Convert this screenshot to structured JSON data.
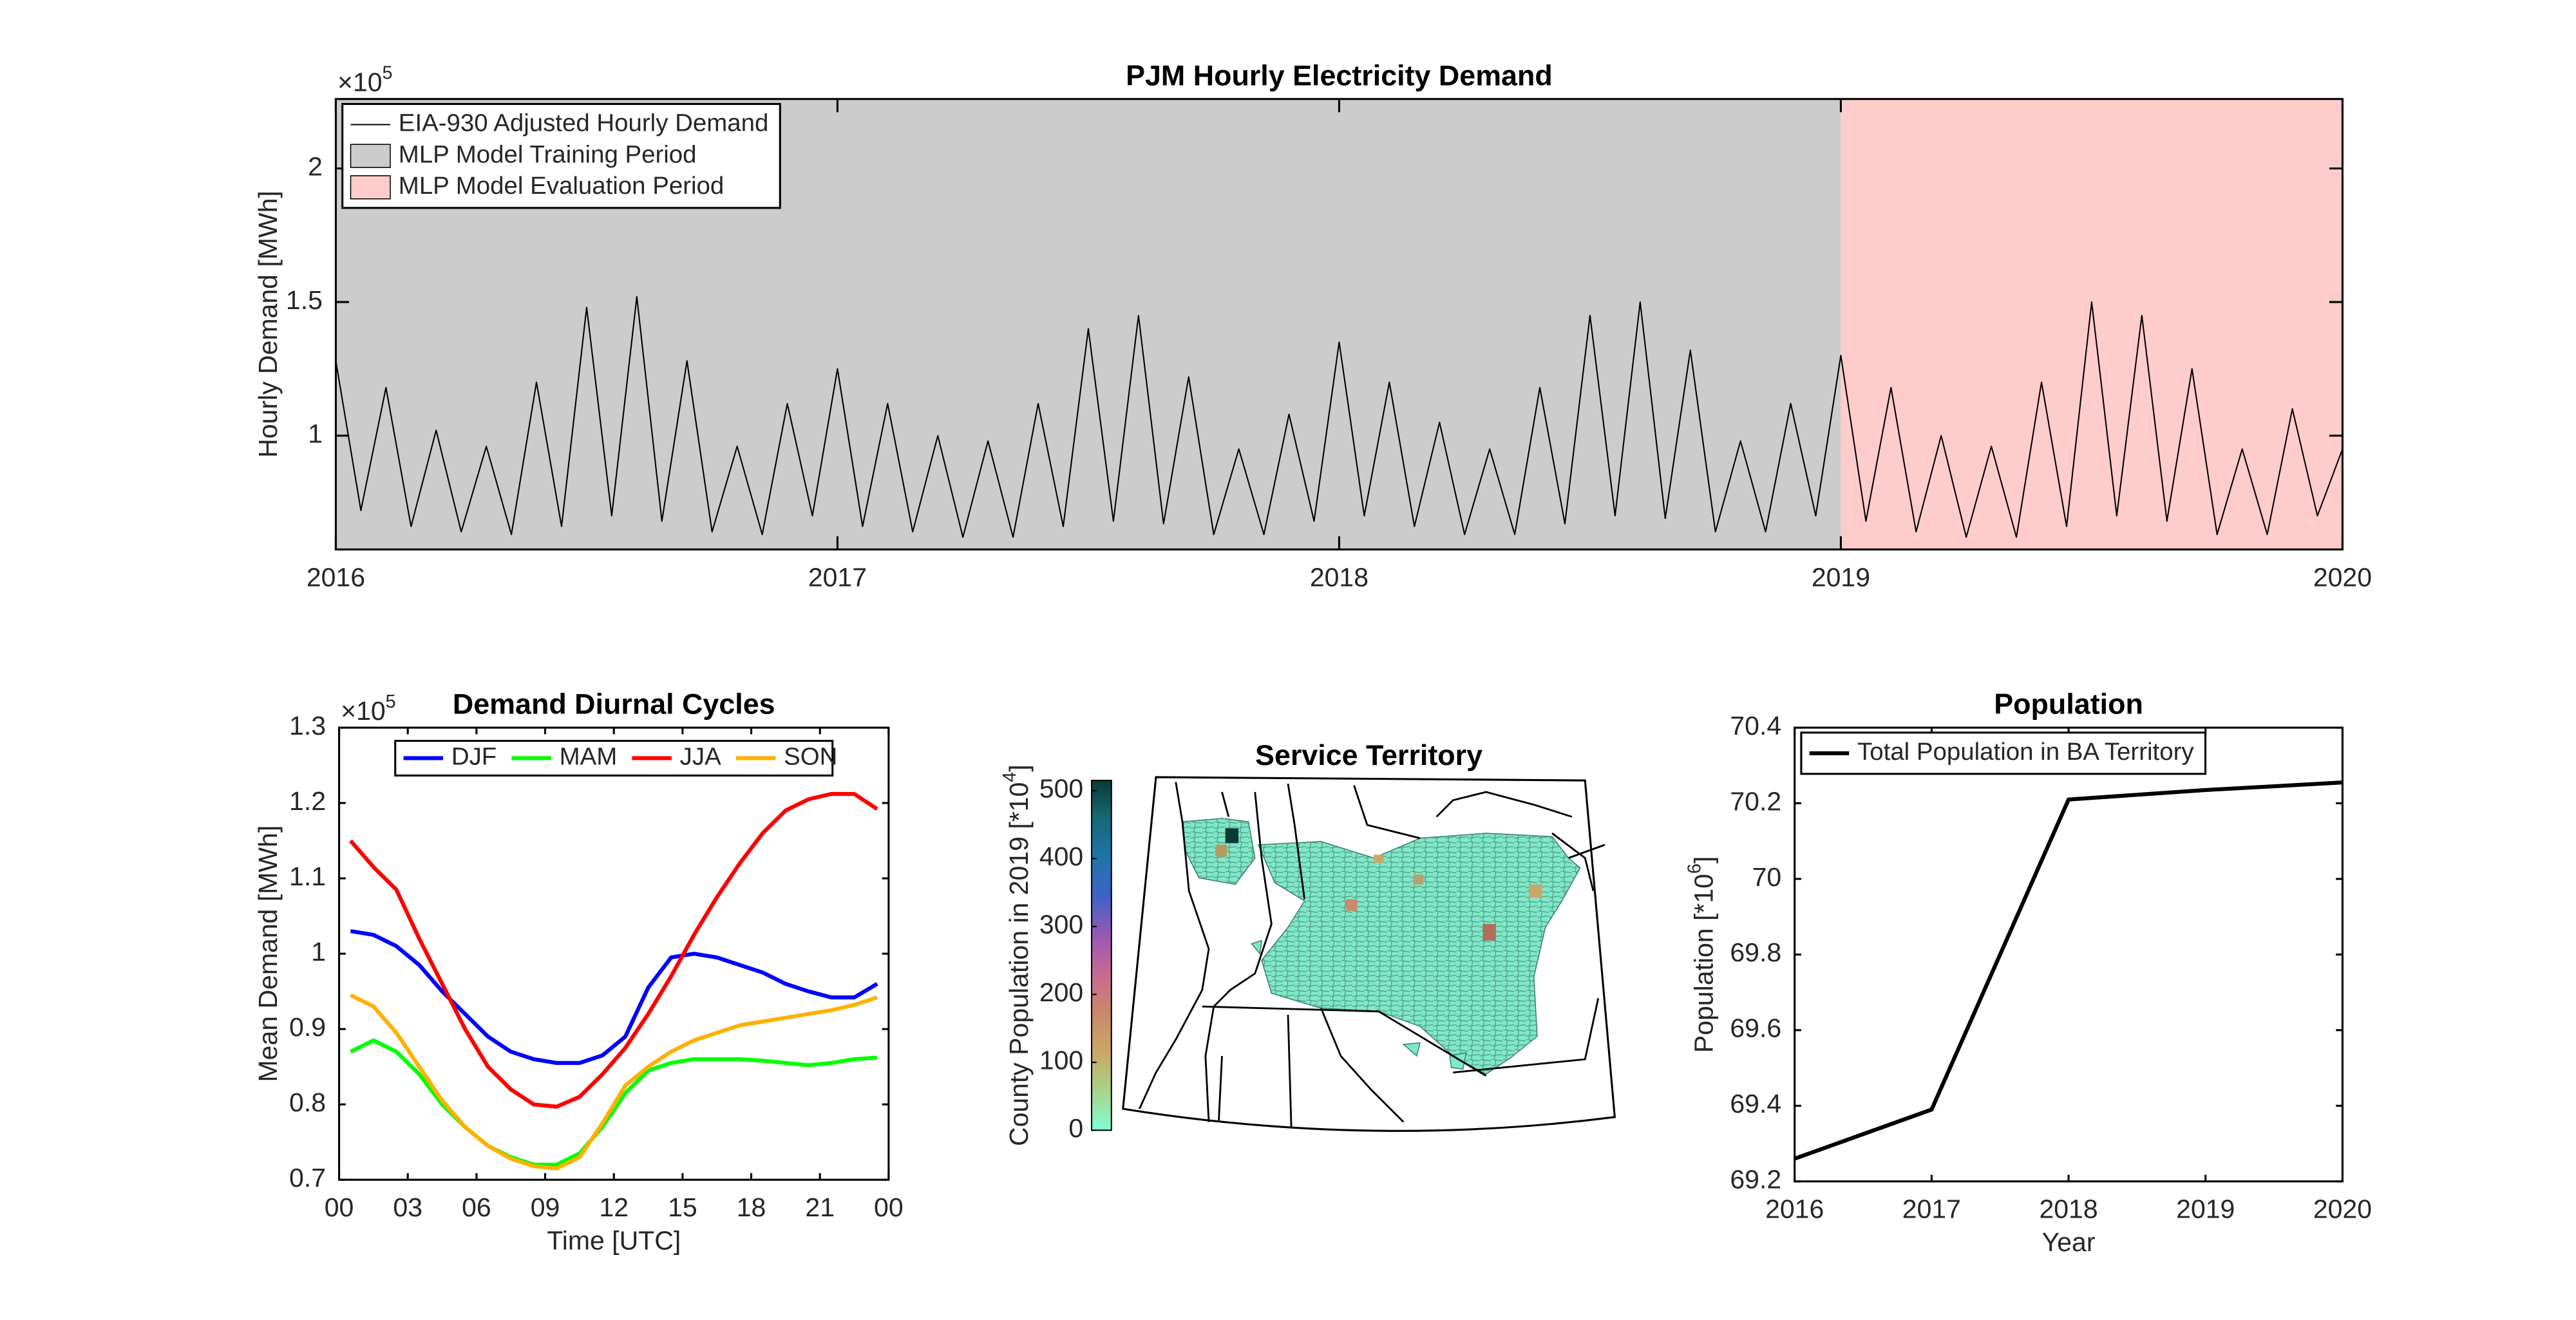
{
  "chart_data": [
    {
      "type": "line",
      "title": "PJM Hourly Electricity Demand",
      "y_label": "Hourly Demand [MWh]",
      "y_multiplier": "×10",
      "y_multiplier_power": "5",
      "x": [
        2016,
        2016.05,
        2016.1,
        2016.15,
        2016.2,
        2016.25,
        2016.3,
        2016.35,
        2016.4,
        2016.45,
        2016.5,
        2016.55,
        2016.6,
        2016.65,
        2016.7,
        2016.75,
        2016.8,
        2016.85,
        2016.9,
        2016.95,
        2017,
        2017.05,
        2017.1,
        2017.15,
        2017.2,
        2017.25,
        2017.3,
        2017.35,
        2017.4,
        2017.45,
        2017.5,
        2017.55,
        2017.6,
        2017.65,
        2017.7,
        2017.75,
        2017.8,
        2017.85,
        2017.9,
        2017.95,
        2018,
        2018.05,
        2018.1,
        2018.15,
        2018.2,
        2018.25,
        2018.3,
        2018.35,
        2018.4,
        2018.45,
        2018.5,
        2018.55,
        2018.6,
        2018.65,
        2018.7,
        2018.75,
        2018.8,
        2018.85,
        2018.9,
        2018.95,
        2019,
        2019.05,
        2019.1,
        2019.15,
        2019.2,
        2019.25,
        2019.3,
        2019.35,
        2019.4,
        2019.45,
        2019.5,
        2019.55,
        2019.6,
        2019.65,
        2019.7,
        2019.75,
        2019.8,
        2019.85,
        2019.9,
        2019.95,
        2020
      ],
      "series": [
        {
          "name": "EIA-930 Adjusted Hourly Demand",
          "color": "#000000",
          "values": [
            128000,
            72000,
            118000,
            66000,
            102000,
            64000,
            96000,
            63000,
            120000,
            66000,
            148000,
            70000,
            152000,
            68000,
            128000,
            64000,
            96000,
            63000,
            112000,
            70000,
            125000,
            66000,
            112000,
            64000,
            100000,
            62000,
            98000,
            62000,
            112000,
            66000,
            140000,
            68000,
            145000,
            67000,
            122000,
            63000,
            95000,
            63000,
            108000,
            68000,
            135000,
            70000,
            120000,
            66000,
            105000,
            63000,
            95000,
            63000,
            118000,
            67000,
            145000,
            70000,
            150000,
            69000,
            132000,
            64000,
            98000,
            64000,
            112000,
            70000,
            130000,
            68000,
            118000,
            64000,
            100000,
            62000,
            96000,
            62000,
            120000,
            66000,
            150000,
            70000,
            145000,
            68000,
            125000,
            63000,
            95000,
            63000,
            110000,
            70000,
            95000
          ]
        }
      ],
      "regions": [
        {
          "name": "MLP Model Training Period",
          "color": "#cccccc",
          "from": 2016,
          "to": 2019
        },
        {
          "name": "MLP Model Evaluation Period",
          "color": "#ffcccc",
          "from": 2019,
          "to": 2020
        }
      ],
      "xlim": [
        2016,
        2020
      ],
      "xticks": [
        2016,
        2017,
        2018,
        2019,
        2020
      ],
      "ylim": [
        57400,
        226000
      ],
      "yticks": [
        {
          "value": 100000,
          "label": "1"
        },
        {
          "value": 150000,
          "label": "1.5"
        },
        {
          "value": 200000,
          "label": "2"
        }
      ],
      "legend": "upper left"
    },
    {
      "type": "line",
      "title": "Demand Diurnal Cycles",
      "x_label": "Time [UTC]",
      "y_label": "Mean Demand [MWh]",
      "y_multiplier": "×10",
      "y_multiplier_power": "5",
      "x": [
        0.5,
        1.5,
        2.5,
        3.5,
        4.5,
        5.5,
        6.5,
        7.5,
        8.5,
        9.5,
        10.5,
        11.5,
        12.5,
        13.5,
        14.5,
        15.5,
        16.5,
        17.5,
        18.5,
        19.5,
        20.5,
        21.5,
        22.5,
        23.5
      ],
      "series": [
        {
          "name": "DJF",
          "color": "#0000ff",
          "values": [
            103000,
            102500,
            101000,
            98500,
            95000,
            92000,
            89000,
            87000,
            86000,
            85500,
            85500,
            86500,
            89000,
            95500,
            99500,
            100000,
            99500,
            98500,
            97500,
            96000,
            95000,
            94200,
            94200,
            96000
          ]
        },
        {
          "name": "MAM",
          "color": "#00ff00",
          "values": [
            87000,
            88500,
            87000,
            84000,
            80000,
            77000,
            74500,
            73000,
            72000,
            72000,
            73500,
            77000,
            81500,
            84500,
            85500,
            86000,
            86000,
            86000,
            85800,
            85500,
            85200,
            85500,
            86000,
            86200
          ]
        },
        {
          "name": "JJA",
          "color": "#ff0000",
          "values": [
            115000,
            111500,
            108500,
            102000,
            96000,
            90000,
            85000,
            82000,
            80000,
            79700,
            81000,
            84000,
            87500,
            92000,
            97000,
            102500,
            107500,
            112000,
            116000,
            119000,
            120500,
            121200,
            121200,
            119200
          ]
        },
        {
          "name": "SON",
          "color": "#ffb000",
          "values": [
            94500,
            93000,
            89500,
            85000,
            80500,
            77000,
            74500,
            72800,
            71800,
            71500,
            73000,
            77500,
            82500,
            85000,
            87000,
            88500,
            89500,
            90500,
            91000,
            91500,
            92000,
            92500,
            93200,
            94200
          ]
        }
      ],
      "xlim": [
        0,
        24
      ],
      "xticks": [
        {
          "value": 0,
          "label": "00"
        },
        {
          "value": 3,
          "label": "03"
        },
        {
          "value": 6,
          "label": "06"
        },
        {
          "value": 9,
          "label": "09"
        },
        12,
        15,
        18,
        21,
        {
          "value": 24,
          "label": "00"
        }
      ],
      "ylim": [
        70000,
        130000
      ],
      "yticks": [
        {
          "value": 70000,
          "label": "0.7"
        },
        {
          "value": 80000,
          "label": "0.8"
        },
        {
          "value": 90000,
          "label": "0.9"
        },
        {
          "value": 100000,
          "label": "1"
        },
        {
          "value": 110000,
          "label": "1.1"
        },
        {
          "value": 120000,
          "label": "1.2"
        },
        {
          "value": 130000,
          "label": "1.3"
        }
      ],
      "legend": "upper center",
      "legend_orientation": "horizontal"
    },
    {
      "type": "map",
      "title": "Service Territory",
      "colorbar_label": "County Population in 2019 [*10",
      "colorbar_label_power": "4",
      "colorbar_label_end": "]",
      "clim": [
        0,
        515
      ],
      "cticks": [
        0,
        100,
        200,
        300,
        400,
        500
      ],
      "colormap": [
        "#7fffd4",
        "#a8d48a",
        "#c9a866",
        "#c98a6a",
        "#c86a92",
        "#9a58b4",
        "#3f62c8",
        "#1f74a8",
        "#166a78",
        "#0b3b36"
      ]
    },
    {
      "type": "line",
      "title": "Population",
      "x_label": "Year",
      "y_label": "Population [*10",
      "y_label_power": "6",
      "y_label_end": "]",
      "x": [
        2016,
        2017,
        2018,
        2019,
        2020
      ],
      "series": [
        {
          "name": "Total Population in BA Territory",
          "color": "#000000",
          "values": [
            69.26,
            69.39,
            70.21,
            70.235,
            70.255
          ]
        }
      ],
      "xlim": [
        2016,
        2020
      ],
      "xticks": [
        2016,
        2017,
        2018,
        2019,
        2020
      ],
      "ylim": [
        69.2,
        70.4
      ],
      "yticks": [
        69.2,
        69.4,
        69.6,
        69.8,
        70,
        70.2,
        70.4
      ],
      "legend": "upper left"
    }
  ]
}
